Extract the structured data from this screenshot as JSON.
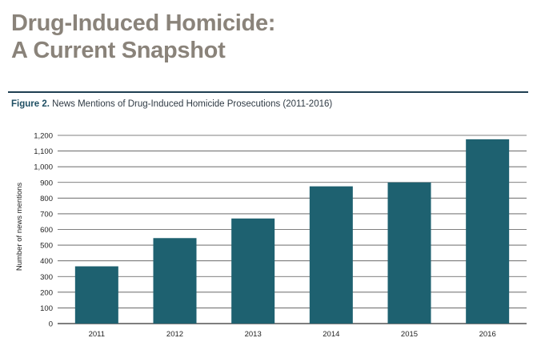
{
  "heading": {
    "line1": "Drug-Induced Homicide:",
    "line2": "A Current Snapshot"
  },
  "figure": {
    "number": "Figure 2.",
    "caption": "News Mentions of Drug-Induced Homicide Prosecutions (2011-2016)"
  },
  "colors": {
    "bar": "#1e6170",
    "heading": "#8a837a",
    "rule": "#1f3f52"
  },
  "chart_data": {
    "type": "bar",
    "categories": [
      "2011",
      "2012",
      "2013",
      "2014",
      "2015",
      "2016"
    ],
    "values": [
      365,
      545,
      670,
      875,
      900,
      1175
    ],
    "title": "News Mentions of Drug-Induced Homicide Prosecutions (2011-2016)",
    "xlabel": "",
    "ylabel": "Number of news mentions",
    "ylim": [
      0,
      1200
    ],
    "yticks": [
      "0",
      "100",
      "200",
      "300",
      "400",
      "500",
      "600",
      "700",
      "800",
      "900",
      "1,000",
      "1,100",
      "1,200"
    ],
    "grid": true,
    "legend": "none"
  }
}
